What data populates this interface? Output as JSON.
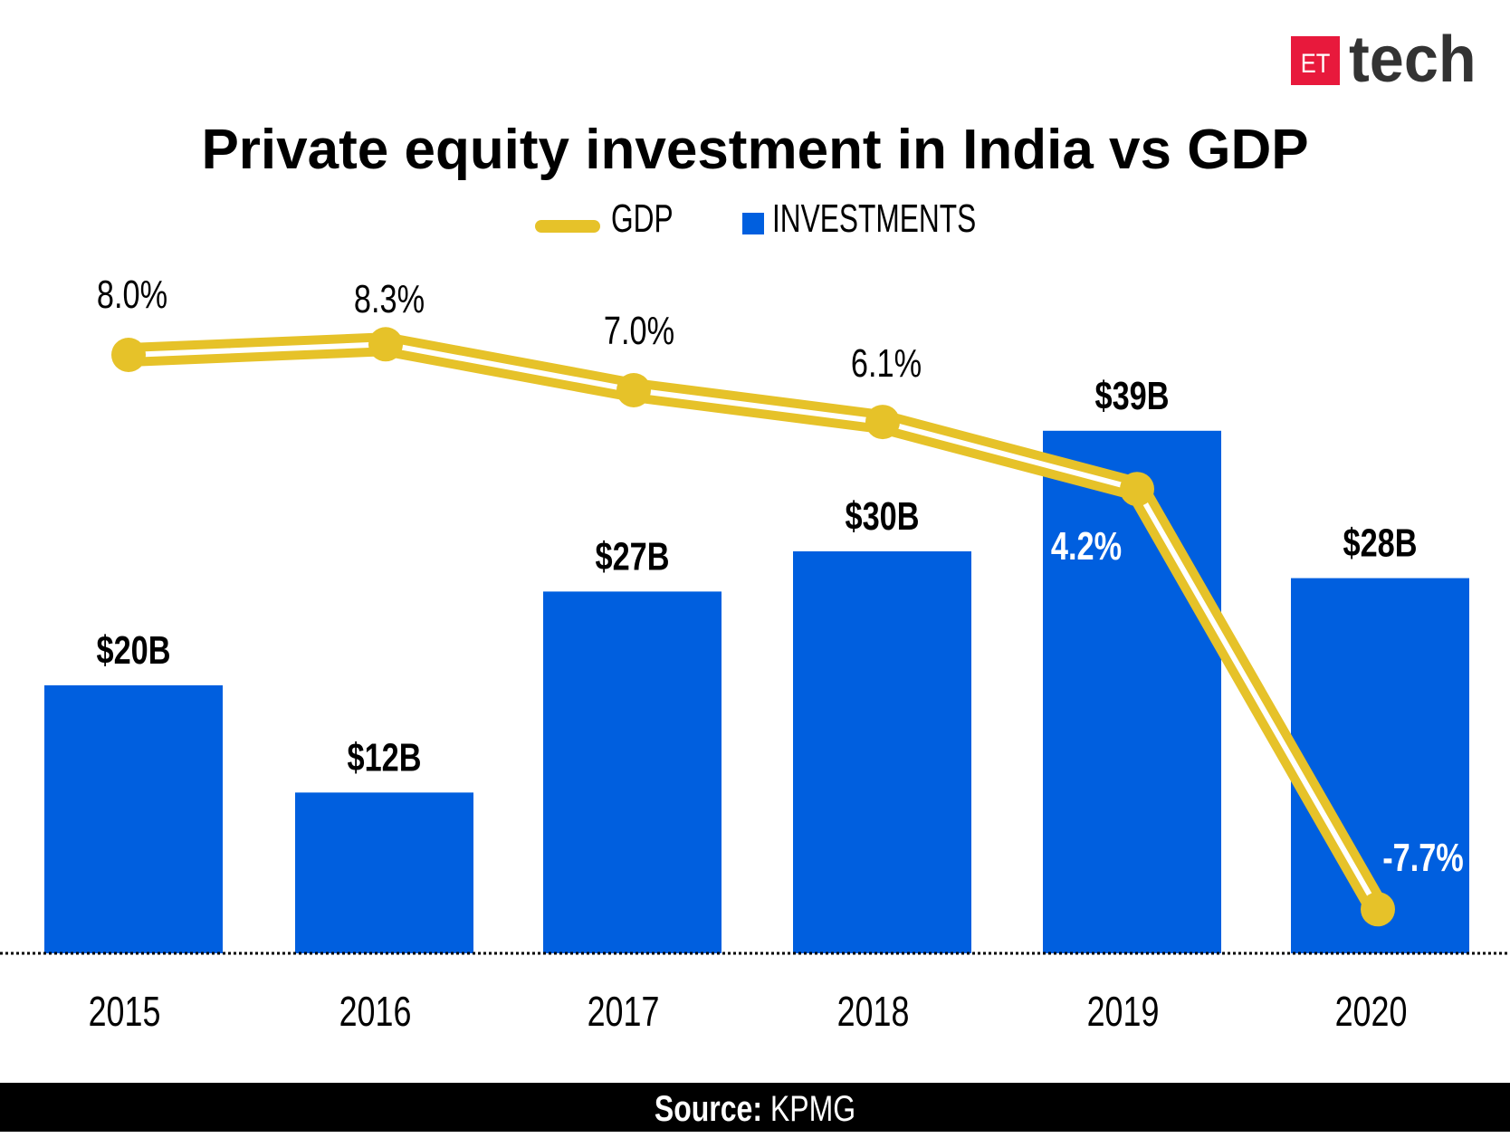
{
  "brand": {
    "logo_box": "ET",
    "logo_word": "tech",
    "logo_color": "#E8193C"
  },
  "chart_data": {
    "type": "bar",
    "title": "Private equity investment in India vs GDP",
    "categories": [
      "2015",
      "2016",
      "2017",
      "2018",
      "2019",
      "2020"
    ],
    "legend": {
      "placement": "top-center",
      "items": [
        {
          "name": "GDP",
          "kind": "line",
          "color": "#E6C229"
        },
        {
          "name": "INVESTMENTS",
          "kind": "bar",
          "color": "#005FDF"
        }
      ]
    },
    "series": [
      {
        "name": "INVESTMENTS",
        "type": "bar",
        "unit": "$B",
        "values": [
          20,
          12,
          27,
          30,
          39,
          28
        ],
        "labels": [
          "$20B",
          "$12B",
          "$27B",
          "$30B",
          "$39B",
          "$28B"
        ],
        "color": "#005FDF"
      },
      {
        "name": "GDP",
        "type": "line",
        "unit": "%",
        "values": [
          8.0,
          8.3,
          7.0,
          6.1,
          4.2,
          -7.7
        ],
        "labels": [
          "8.0%",
          "8.3%",
          "7.0%",
          "6.1%",
          "4.2%",
          "-7.7%"
        ],
        "color": "#E6C229"
      }
    ],
    "grid": false,
    "baseline": "dotted"
  },
  "footer": {
    "source_label": "Source:",
    "source_value": "KPMG"
  }
}
